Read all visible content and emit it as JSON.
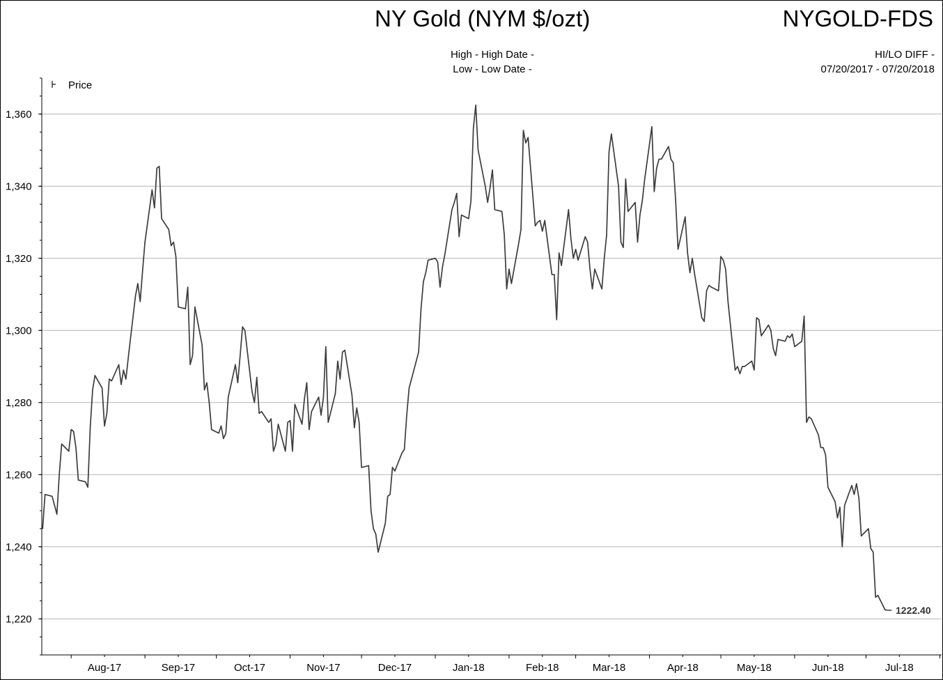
{
  "header": {
    "title": "NY Gold (NYM $/ozt)",
    "symbol": "NYGOLD-FDS",
    "high_line": "High - High Date -",
    "low_line": "Low - Low Date -",
    "hilo_line": "HI/LO DIFF -",
    "date_range": "07/20/2017 - 07/20/2018"
  },
  "chart_data": {
    "type": "line",
    "title": "NY Gold (NYM $/ozt)",
    "legend": [
      "Price"
    ],
    "legend_position": "top-left",
    "grid": true,
    "xlabel": "",
    "ylabel": "",
    "ylim": [
      1210,
      1370
    ],
    "y_ticks": [
      1220,
      1240,
      1260,
      1280,
      1300,
      1320,
      1340,
      1360
    ],
    "y_tick_labels": [
      "1,220",
      "1,240",
      "1,260",
      "1,280",
      "1,300",
      "1,320",
      "1,340",
      "1,360"
    ],
    "x_tick_labels": [
      "Aug-17",
      "Sep-17",
      "Oct-17",
      "Nov-17",
      "Dec-17",
      "Jan-18",
      "Feb-18",
      "Mar-18",
      "Apr-18",
      "May-18",
      "Jun-18",
      "Jul-18"
    ],
    "x_tick_dates": [
      "2017-08-15",
      "2017-09-15",
      "2017-10-15",
      "2017-11-15",
      "2017-12-15",
      "2018-01-15",
      "2018-02-15",
      "2018-03-15",
      "2018-04-15",
      "2018-05-15",
      "2018-06-15",
      "2018-07-15"
    ],
    "x_range": [
      "2017-07-20",
      "2018-07-31"
    ],
    "last_value_label": "1222.40",
    "series": [
      {
        "name": "Price",
        "color": "#3c3c3c",
        "points": [
          [
            "2017-07-20",
            1245.0
          ],
          [
            "2017-07-21",
            1254.5
          ],
          [
            "2017-07-24",
            1254.0
          ],
          [
            "2017-07-25",
            1251.5
          ],
          [
            "2017-07-26",
            1249.0
          ],
          [
            "2017-07-27",
            1260.0
          ],
          [
            "2017-07-28",
            1268.5
          ],
          [
            "2017-07-31",
            1266.5
          ],
          [
            "2017-08-01",
            1272.5
          ],
          [
            "2017-08-02",
            1272.0
          ],
          [
            "2017-08-03",
            1267.5
          ],
          [
            "2017-08-04",
            1258.5
          ],
          [
            "2017-08-07",
            1258.0
          ],
          [
            "2017-08-08",
            1256.5
          ],
          [
            "2017-08-09",
            1273.0
          ],
          [
            "2017-08-10",
            1283.5
          ],
          [
            "2017-08-11",
            1287.5
          ],
          [
            "2017-08-14",
            1284.0
          ],
          [
            "2017-08-15",
            1273.5
          ],
          [
            "2017-08-16",
            1277.0
          ],
          [
            "2017-08-17",
            1286.5
          ],
          [
            "2017-08-18",
            1286.0
          ],
          [
            "2017-08-21",
            1290.5
          ],
          [
            "2017-08-22",
            1285.0
          ],
          [
            "2017-08-23",
            1289.0
          ],
          [
            "2017-08-24",
            1286.5
          ],
          [
            "2017-08-25",
            1292.5
          ],
          [
            "2017-08-28",
            1309.5
          ],
          [
            "2017-08-29",
            1313.0
          ],
          [
            "2017-08-30",
            1308.0
          ],
          [
            "2017-08-31",
            1316.5
          ],
          [
            "2017-09-01",
            1324.5
          ],
          [
            "2017-09-04",
            1339.0
          ],
          [
            "2017-09-05",
            1334.0
          ],
          [
            "2017-09-06",
            1345.0
          ],
          [
            "2017-09-07",
            1345.5
          ],
          [
            "2017-09-08",
            1331.0
          ],
          [
            "2017-09-11",
            1328.0
          ],
          [
            "2017-09-12",
            1323.5
          ],
          [
            "2017-09-13",
            1324.5
          ],
          [
            "2017-09-14",
            1320.5
          ],
          [
            "2017-09-15",
            1306.5
          ],
          [
            "2017-09-18",
            1306.0
          ],
          [
            "2017-09-19",
            1312.0
          ],
          [
            "2017-09-20",
            1290.5
          ],
          [
            "2017-09-21",
            1293.0
          ],
          [
            "2017-09-22",
            1306.5
          ],
          [
            "2017-09-25",
            1296.0
          ],
          [
            "2017-09-26",
            1283.5
          ],
          [
            "2017-09-27",
            1285.5
          ],
          [
            "2017-09-28",
            1280.0
          ],
          [
            "2017-09-29",
            1272.5
          ],
          [
            "2017-10-02",
            1271.5
          ],
          [
            "2017-10-03",
            1273.5
          ],
          [
            "2017-10-04",
            1270.0
          ],
          [
            "2017-10-05",
            1271.5
          ],
          [
            "2017-10-06",
            1281.5
          ],
          [
            "2017-10-09",
            1290.5
          ],
          [
            "2017-10-10",
            1285.5
          ],
          [
            "2017-10-11",
            1293.0
          ],
          [
            "2017-10-12",
            1301.0
          ],
          [
            "2017-10-13",
            1300.0
          ],
          [
            "2017-10-16",
            1283.0
          ],
          [
            "2017-10-17",
            1280.0
          ],
          [
            "2017-10-18",
            1287.0
          ],
          [
            "2017-10-19",
            1277.0
          ],
          [
            "2017-10-20",
            1277.5
          ],
          [
            "2017-10-23",
            1274.5
          ],
          [
            "2017-10-24",
            1275.5
          ],
          [
            "2017-10-25",
            1266.5
          ],
          [
            "2017-10-26",
            1268.5
          ],
          [
            "2017-10-27",
            1274.0
          ],
          [
            "2017-10-30",
            1266.5
          ],
          [
            "2017-10-31",
            1274.5
          ],
          [
            "2017-11-01",
            1275.0
          ],
          [
            "2017-11-02",
            1266.5
          ],
          [
            "2017-11-03",
            1279.5
          ],
          [
            "2017-11-06",
            1274.0
          ],
          [
            "2017-11-07",
            1281.0
          ],
          [
            "2017-11-08",
            1285.5
          ],
          [
            "2017-11-09",
            1272.5
          ],
          [
            "2017-11-10",
            1277.5
          ],
          [
            "2017-11-13",
            1281.5
          ],
          [
            "2017-11-14",
            1276.5
          ],
          [
            "2017-11-15",
            1281.5
          ],
          [
            "2017-11-16",
            1295.5
          ],
          [
            "2017-11-17",
            1274.5
          ],
          [
            "2017-11-20",
            1282.5
          ],
          [
            "2017-11-21",
            1291.5
          ],
          [
            "2017-11-22",
            1286.5
          ],
          [
            "2017-11-23",
            1294.0
          ],
          [
            "2017-11-24",
            1294.5
          ],
          [
            "2017-11-27",
            1282.0
          ],
          [
            "2017-11-28",
            1273.0
          ],
          [
            "2017-11-29",
            1278.5
          ],
          [
            "2017-11-30",
            1274.5
          ],
          [
            "2017-12-01",
            1262.0
          ],
          [
            "2017-12-04",
            1262.5
          ],
          [
            "2017-12-05",
            1250.0
          ],
          [
            "2017-12-06",
            1245.0
          ],
          [
            "2017-12-07",
            1243.5
          ],
          [
            "2017-12-08",
            1238.5
          ],
          [
            "2017-12-11",
            1246.5
          ],
          [
            "2017-12-12",
            1254.0
          ],
          [
            "2017-12-13",
            1254.5
          ],
          [
            "2017-12-14",
            1262.0
          ],
          [
            "2017-12-15",
            1261.0
          ],
          [
            "2017-12-18",
            1266.0
          ],
          [
            "2017-12-19",
            1267.0
          ],
          [
            "2017-12-20",
            1276.5
          ],
          [
            "2017-12-21",
            1284.0
          ],
          [
            "2017-12-22",
            1286.5
          ],
          [
            "2017-12-25",
            1294.0
          ],
          [
            "2017-12-26",
            1306.0
          ],
          [
            "2017-12-27",
            1313.5
          ],
          [
            "2017-12-28",
            1316.0
          ],
          [
            "2017-12-29",
            1319.5
          ],
          [
            "2018-01-01",
            1320.0
          ],
          [
            "2018-01-02",
            1319.0
          ],
          [
            "2018-01-03",
            1312.0
          ],
          [
            "2018-01-04",
            1317.5
          ],
          [
            "2018-01-05",
            1321.0
          ],
          [
            "2018-01-08",
            1333.5
          ],
          [
            "2018-01-09",
            1335.5
          ],
          [
            "2018-01-10",
            1338.0
          ],
          [
            "2018-01-11",
            1326.0
          ],
          [
            "2018-01-12",
            1332.0
          ],
          [
            "2018-01-15",
            1331.0
          ],
          [
            "2018-01-16",
            1336.0
          ],
          [
            "2018-01-17",
            1356.0
          ],
          [
            "2018-01-18",
            1362.5
          ],
          [
            "2018-01-19",
            1350.0
          ],
          [
            "2018-01-22",
            1340.0
          ],
          [
            "2018-01-23",
            1335.5
          ],
          [
            "2018-01-24",
            1339.5
          ],
          [
            "2018-01-25",
            1344.5
          ],
          [
            "2018-01-26",
            1333.5
          ],
          [
            "2018-01-29",
            1333.0
          ],
          [
            "2018-01-30",
            1326.5
          ],
          [
            "2018-01-31",
            1311.5
          ],
          [
            "2018-02-01",
            1317.0
          ],
          [
            "2018-02-02",
            1313.0
          ],
          [
            "2018-02-05",
            1324.0
          ],
          [
            "2018-02-06",
            1328.0
          ],
          [
            "2018-02-07",
            1355.5
          ],
          [
            "2018-02-08",
            1352.0
          ],
          [
            "2018-02-09",
            1353.5
          ],
          [
            "2018-02-12",
            1329.0
          ],
          [
            "2018-02-13",
            1330.0
          ],
          [
            "2018-02-14",
            1330.5
          ],
          [
            "2018-02-15",
            1327.5
          ],
          [
            "2018-02-16",
            1330.5
          ],
          [
            "2018-02-19",
            1315.5
          ],
          [
            "2018-02-20",
            1315.5
          ],
          [
            "2018-02-21",
            1303.0
          ],
          [
            "2018-02-22",
            1321.5
          ],
          [
            "2018-02-23",
            1318.0
          ],
          [
            "2018-02-26",
            1333.5
          ],
          [
            "2018-02-27",
            1325.5
          ],
          [
            "2018-02-28",
            1320.0
          ],
          [
            "2018-03-01",
            1322.5
          ],
          [
            "2018-03-02",
            1319.5
          ],
          [
            "2018-03-05",
            1326.0
          ],
          [
            "2018-03-06",
            1324.5
          ],
          [
            "2018-03-07",
            1317.0
          ],
          [
            "2018-03-08",
            1311.5
          ],
          [
            "2018-03-09",
            1317.0
          ],
          [
            "2018-03-12",
            1311.5
          ],
          [
            "2018-03-13",
            1320.0
          ],
          [
            "2018-03-14",
            1326.5
          ],
          [
            "2018-03-15",
            1349.5
          ],
          [
            "2018-03-16",
            1354.5
          ],
          [
            "2018-03-19",
            1340.0
          ],
          [
            "2018-03-20",
            1324.5
          ],
          [
            "2018-03-21",
            1323.0
          ],
          [
            "2018-03-22",
            1342.0
          ],
          [
            "2018-03-23",
            1333.0
          ],
          [
            "2018-03-26",
            1335.5
          ],
          [
            "2018-03-27",
            1324.5
          ],
          [
            "2018-03-28",
            1332.0
          ],
          [
            "2018-03-29",
            1336.0
          ],
          [
            "2018-03-30",
            1342.0
          ],
          [
            "2018-04-02",
            1356.5
          ],
          [
            "2018-04-03",
            1338.5
          ],
          [
            "2018-04-04",
            1345.0
          ],
          [
            "2018-04-05",
            1347.5
          ],
          [
            "2018-04-06",
            1347.5
          ],
          [
            "2018-04-09",
            1351.0
          ],
          [
            "2018-04-10",
            1347.5
          ],
          [
            "2018-04-11",
            1346.5
          ],
          [
            "2018-04-12",
            1336.0
          ],
          [
            "2018-04-13",
            1322.5
          ],
          [
            "2018-04-16",
            1331.5
          ],
          [
            "2018-04-17",
            1321.5
          ],
          [
            "2018-04-18",
            1316.0
          ],
          [
            "2018-04-19",
            1320.0
          ],
          [
            "2018-04-20",
            1315.5
          ],
          [
            "2018-04-23",
            1303.5
          ],
          [
            "2018-04-24",
            1302.5
          ],
          [
            "2018-04-25",
            1311.0
          ],
          [
            "2018-04-26",
            1312.5
          ],
          [
            "2018-04-27",
            1312.0
          ],
          [
            "2018-04-30",
            1311.0
          ],
          [
            "2018-05-01",
            1320.5
          ],
          [
            "2018-05-02",
            1319.5
          ],
          [
            "2018-05-03",
            1317.0
          ],
          [
            "2018-05-04",
            1308.0
          ],
          [
            "2018-05-07",
            1289.0
          ],
          [
            "2018-05-08",
            1290.0
          ],
          [
            "2018-05-09",
            1288.0
          ],
          [
            "2018-05-10",
            1290.0
          ],
          [
            "2018-05-11",
            1290.0
          ],
          [
            "2018-05-14",
            1291.5
          ],
          [
            "2018-05-15",
            1289.0
          ],
          [
            "2018-05-16",
            1303.5
          ],
          [
            "2018-05-17",
            1303.0
          ],
          [
            "2018-05-18",
            1298.5
          ],
          [
            "2018-05-21",
            1301.5
          ],
          [
            "2018-05-22",
            1300.0
          ],
          [
            "2018-05-23",
            1295.0
          ],
          [
            "2018-05-24",
            1293.0
          ],
          [
            "2018-05-25",
            1297.5
          ],
          [
            "2018-05-28",
            1297.0
          ],
          [
            "2018-05-29",
            1298.5
          ],
          [
            "2018-05-30",
            1298.0
          ],
          [
            "2018-05-31",
            1299.0
          ],
          [
            "2018-06-01",
            1295.5
          ],
          [
            "2018-06-04",
            1297.0
          ],
          [
            "2018-06-05",
            1304.0
          ],
          [
            "2018-06-06",
            1274.5
          ],
          [
            "2018-06-07",
            1276.0
          ],
          [
            "2018-06-08",
            1275.5
          ],
          [
            "2018-06-11",
            1271.0
          ],
          [
            "2018-06-12",
            1267.5
          ],
          [
            "2018-06-13",
            1267.5
          ],
          [
            "2018-06-14",
            1265.5
          ],
          [
            "2018-06-15",
            1256.5
          ],
          [
            "2018-06-18",
            1252.5
          ],
          [
            "2018-06-19",
            1248.0
          ],
          [
            "2018-06-20",
            1251.0
          ],
          [
            "2018-06-21",
            1240.0
          ],
          [
            "2018-06-22",
            1251.5
          ],
          [
            "2018-06-25",
            1257.0
          ],
          [
            "2018-06-26",
            1254.5
          ],
          [
            "2018-06-27",
            1257.5
          ],
          [
            "2018-06-28",
            1253.5
          ],
          [
            "2018-06-29",
            1243.0
          ],
          [
            "2018-07-02",
            1245.0
          ],
          [
            "2018-07-03",
            1239.5
          ],
          [
            "2018-07-04",
            1238.5
          ],
          [
            "2018-07-05",
            1226.0
          ],
          [
            "2018-07-06",
            1226.5
          ],
          [
            "2018-07-09",
            1222.5
          ],
          [
            "2018-07-10",
            1222.4
          ]
        ]
      }
    ]
  }
}
